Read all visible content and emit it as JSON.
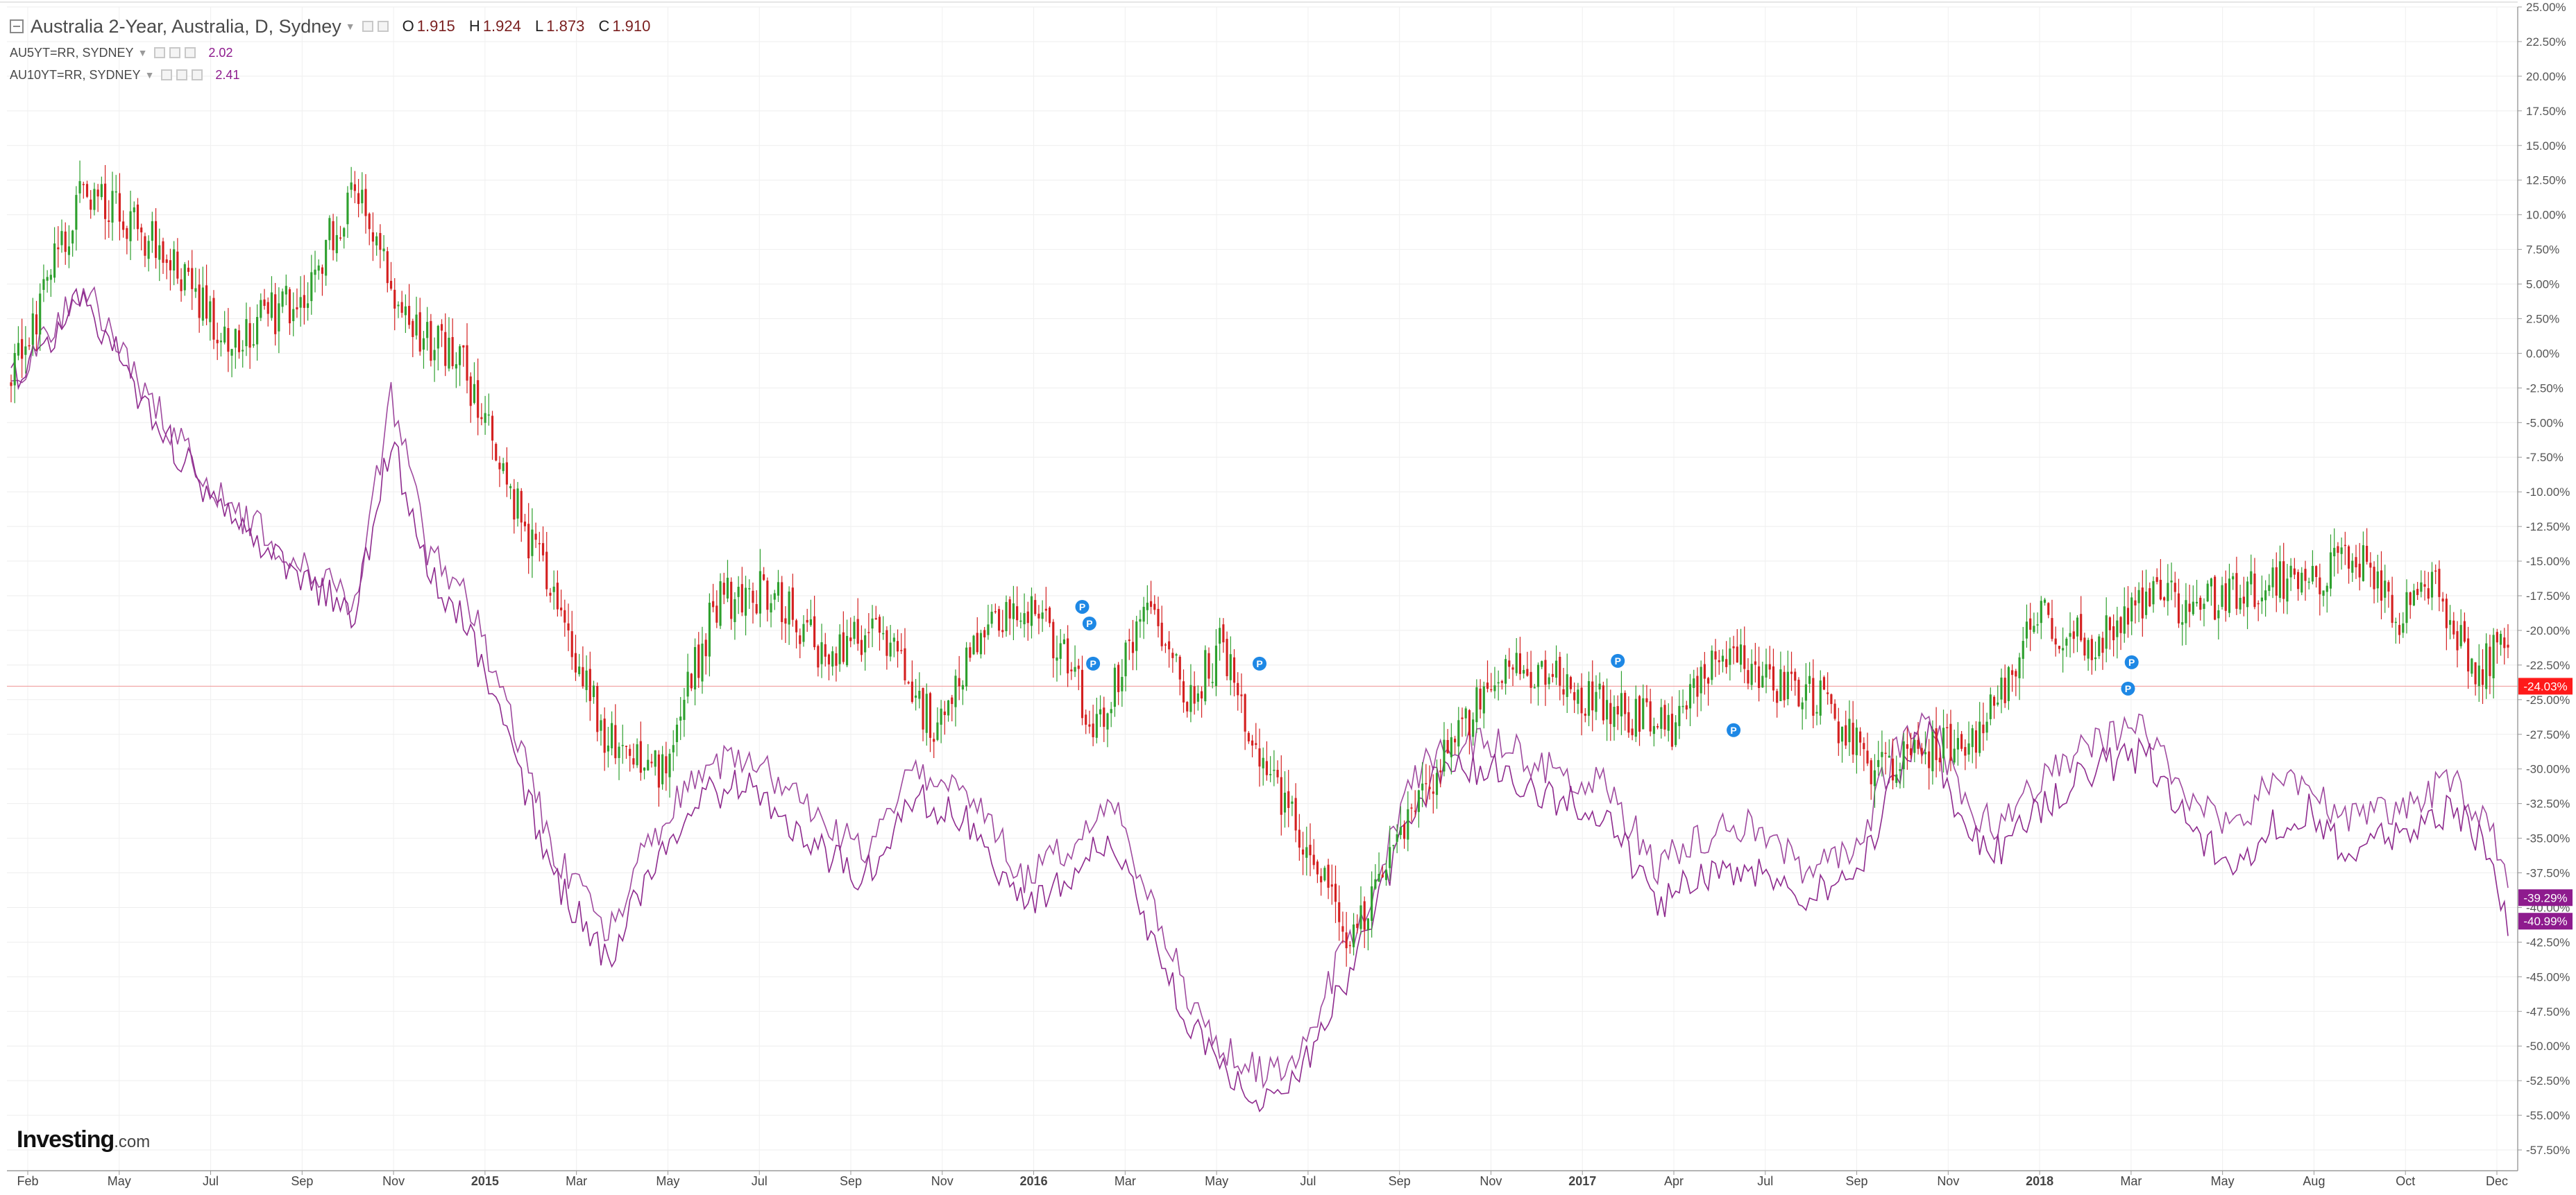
{
  "legend": {
    "main_symbol": "Australia 2-Year, Australia, D, Sydney",
    "ohlc": {
      "o_label": "O",
      "o": "1.915",
      "h_label": "H",
      "h": "1.924",
      "l_label": "L",
      "l": "1.873",
      "c_label": "C",
      "c": "1.910"
    },
    "compare": [
      {
        "symbol": "AU5YT=RR, SYDNEY",
        "value": "2.02"
      },
      {
        "symbol": "AU10YT=RR, SYDNEY",
        "value": "2.41"
      }
    ]
  },
  "logo": {
    "brand": "Investing",
    "suffix": ".com"
  },
  "colors": {
    "up": "#2ea02e",
    "down": "#d42020",
    "compare": "#8e2a8e",
    "price_line": "#f0a0a0",
    "last_price_bg": "#ff1a1a",
    "compare_bg": "#8e1b8e",
    "marker": "#1e88e5"
  },
  "chart_data": {
    "type": "candlestick",
    "y_axis": {
      "min": -59,
      "max": 25,
      "ticks": [
        "25.00%",
        "22.50%",
        "20.00%",
        "17.50%",
        "15.00%",
        "12.50%",
        "10.00%",
        "7.50%",
        "5.00%",
        "2.50%",
        "0.00%",
        "-2.50%",
        "-5.00%",
        "-7.50%",
        "-10.00%",
        "-12.50%",
        "-15.00%",
        "-17.50%",
        "-20.00%",
        "-22.50%",
        "-25.00%",
        "-27.50%",
        "-30.00%",
        "-32.50%",
        "-35.00%",
        "-37.50%",
        "-40.00%",
        "-42.50%",
        "-45.00%",
        "-47.50%",
        "-50.00%",
        "-52.50%",
        "-55.00%",
        "-57.50%"
      ]
    },
    "x_axis": {
      "ticks": [
        "Feb",
        "May",
        "Jul",
        "Sep",
        "Nov",
        "2015",
        "Mar",
        "May",
        "Jul",
        "Sep",
        "Nov",
        "2016",
        "Mar",
        "May",
        "Jul",
        "Sep",
        "Nov",
        "2017",
        "Apr",
        "Jul",
        "Sep",
        "Nov",
        "2018",
        "Mar",
        "May",
        "Aug",
        "Oct",
        "Dec"
      ],
      "bold": [
        "2015",
        "2016",
        "2017",
        "2018"
      ]
    },
    "grid": true,
    "last_price_label": "-24.03%",
    "last_price_value": -24.03,
    "compare_labels": [
      {
        "text": "-39.29%",
        "value": -39.29
      },
      {
        "text": "-40.99%",
        "value": -40.99
      }
    ],
    "series": [
      {
        "name": "Australia 2-Year",
        "style": "candles",
        "anchors": [
          [
            0,
            -2
          ],
          [
            20,
            12
          ],
          [
            40,
            8
          ],
          [
            60,
            1
          ],
          [
            80,
            4
          ],
          [
            95,
            12
          ],
          [
            110,
            2
          ],
          [
            125,
            -1
          ],
          [
            135,
            -8
          ],
          [
            150,
            -18
          ],
          [
            165,
            -28
          ],
          [
            180,
            -30
          ],
          [
            195,
            -18
          ],
          [
            210,
            -17
          ],
          [
            225,
            -22
          ],
          [
            240,
            -20
          ],
          [
            255,
            -27
          ],
          [
            270,
            -19
          ],
          [
            285,
            -19
          ],
          [
            300,
            -27
          ],
          [
            315,
            -18
          ],
          [
            325,
            -25
          ],
          [
            335,
            -21
          ],
          [
            345,
            -30
          ],
          [
            355,
            -34
          ],
          [
            370,
            -42
          ],
          [
            385,
            -35
          ],
          [
            400,
            -27
          ],
          [
            415,
            -22
          ],
          [
            430,
            -24
          ],
          [
            445,
            -26
          ],
          [
            460,
            -27
          ],
          [
            475,
            -21
          ],
          [
            485,
            -24
          ],
          [
            500,
            -25
          ],
          [
            515,
            -30
          ],
          [
            530,
            -29
          ],
          [
            545,
            -27
          ],
          [
            560,
            -19
          ],
          [
            575,
            -21
          ],
          [
            590,
            -18
          ],
          [
            605,
            -18
          ],
          [
            620,
            -17
          ],
          [
            635,
            -16
          ],
          [
            650,
            -15
          ],
          [
            660,
            -19
          ],
          [
            670,
            -17
          ],
          [
            680,
            -23
          ],
          [
            690,
            -21
          ]
        ]
      },
      {
        "name": "AU5YT=RR, SYDNEY",
        "style": "line",
        "anchors": [
          [
            0,
            -2
          ],
          [
            20,
            5
          ],
          [
            40,
            -4
          ],
          [
            60,
            -11
          ],
          [
            80,
            -15
          ],
          [
            95,
            -18
          ],
          [
            105,
            -3
          ],
          [
            115,
            -14
          ],
          [
            125,
            -17
          ],
          [
            135,
            -24
          ],
          [
            150,
            -36
          ],
          [
            165,
            -42
          ],
          [
            175,
            -36
          ],
          [
            190,
            -30
          ],
          [
            205,
            -29
          ],
          [
            220,
            -33
          ],
          [
            235,
            -36
          ],
          [
            250,
            -30
          ],
          [
            265,
            -32
          ],
          [
            280,
            -38
          ],
          [
            290,
            -36
          ],
          [
            305,
            -33
          ],
          [
            315,
            -40
          ],
          [
            325,
            -46
          ],
          [
            335,
            -50
          ],
          [
            345,
            -52
          ],
          [
            355,
            -51
          ],
          [
            365,
            -45
          ],
          [
            375,
            -40
          ],
          [
            385,
            -32
          ],
          [
            395,
            -28
          ],
          [
            410,
            -28
          ],
          [
            425,
            -30
          ],
          [
            440,
            -31
          ],
          [
            455,
            -37
          ],
          [
            465,
            -35
          ],
          [
            480,
            -34
          ],
          [
            495,
            -37
          ],
          [
            510,
            -36
          ],
          [
            520,
            -29
          ],
          [
            530,
            -26
          ],
          [
            540,
            -33
          ],
          [
            550,
            -34
          ],
          [
            560,
            -31
          ],
          [
            575,
            -28
          ],
          [
            590,
            -27
          ],
          [
            605,
            -33
          ],
          [
            615,
            -34
          ],
          [
            625,
            -31
          ],
          [
            635,
            -31
          ],
          [
            645,
            -34
          ],
          [
            655,
            -33
          ],
          [
            665,
            -32
          ],
          [
            675,
            -31
          ],
          [
            685,
            -34
          ],
          [
            690,
            -39
          ]
        ]
      },
      {
        "name": "AU10YT=RR, SYDNEY",
        "style": "line",
        "anchors": [
          [
            0,
            -2
          ],
          [
            20,
            4
          ],
          [
            40,
            -5
          ],
          [
            60,
            -12
          ],
          [
            80,
            -16
          ],
          [
            95,
            -19
          ],
          [
            105,
            -6
          ],
          [
            115,
            -16
          ],
          [
            125,
            -19
          ],
          [
            135,
            -26
          ],
          [
            150,
            -38
          ],
          [
            165,
            -44
          ],
          [
            175,
            -38
          ],
          [
            190,
            -32
          ],
          [
            205,
            -31
          ],
          [
            220,
            -35
          ],
          [
            235,
            -38
          ],
          [
            250,
            -32
          ],
          [
            265,
            -34
          ],
          [
            280,
            -40
          ],
          [
            290,
            -38
          ],
          [
            305,
            -35
          ],
          [
            315,
            -42
          ],
          [
            325,
            -48
          ],
          [
            335,
            -52
          ],
          [
            345,
            -54
          ],
          [
            355,
            -53
          ],
          [
            365,
            -47
          ],
          [
            375,
            -42
          ],
          [
            385,
            -34
          ],
          [
            395,
            -30
          ],
          [
            410,
            -30
          ],
          [
            425,
            -32
          ],
          [
            440,
            -33
          ],
          [
            455,
            -40
          ],
          [
            465,
            -38
          ],
          [
            480,
            -37
          ],
          [
            495,
            -39
          ],
          [
            510,
            -38
          ],
          [
            520,
            -31
          ],
          [
            530,
            -27
          ],
          [
            540,
            -35
          ],
          [
            550,
            -36
          ],
          [
            560,
            -33
          ],
          [
            575,
            -30
          ],
          [
            590,
            -29
          ],
          [
            605,
            -35
          ],
          [
            615,
            -37
          ],
          [
            625,
            -34
          ],
          [
            635,
            -33
          ],
          [
            645,
            -36
          ],
          [
            655,
            -35
          ],
          [
            665,
            -34
          ],
          [
            675,
            -33
          ],
          [
            685,
            -36
          ],
          [
            690,
            -41
          ]
        ]
      }
    ],
    "event_markers": [
      {
        "label": "P",
        "bar": 296,
        "value": -18.3
      },
      {
        "label": "P",
        "bar": 298,
        "value": -19.5
      },
      {
        "label": "P",
        "bar": 299,
        "value": -22.4
      },
      {
        "label": "P",
        "bar": 345,
        "value": -22.4
      },
      {
        "label": "P",
        "bar": 444,
        "value": -22.2
      },
      {
        "label": "P",
        "bar": 476,
        "value": -27.2
      },
      {
        "label": "P",
        "bar": 586,
        "value": -22.3
      },
      {
        "label": "P",
        "bar": 585,
        "value": -24.2
      }
    ]
  }
}
